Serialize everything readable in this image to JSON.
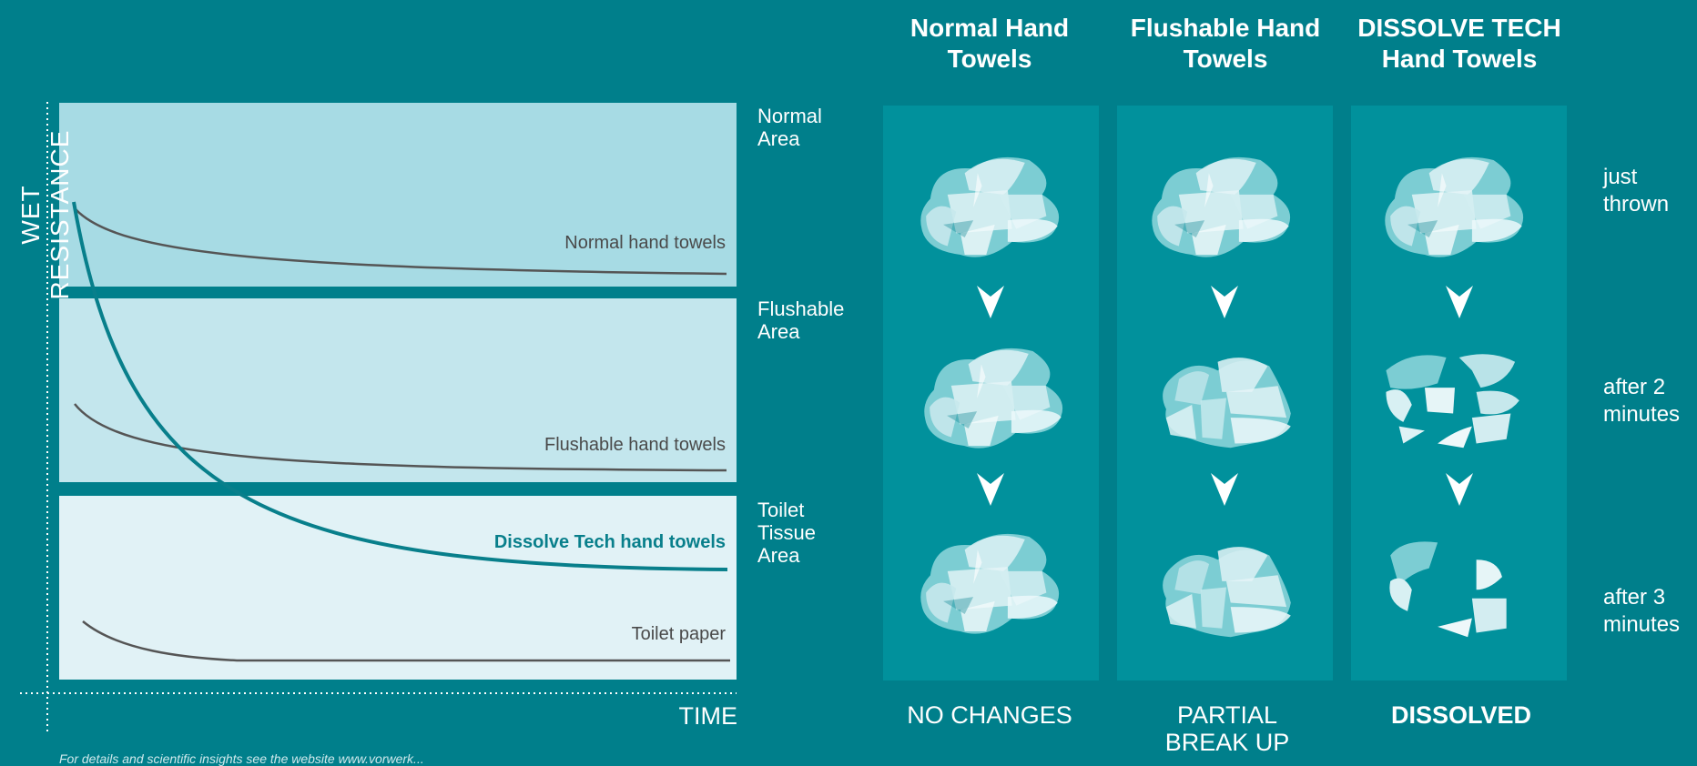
{
  "chart": {
    "y_axis_label": "WET RESISTANCE",
    "x_axis_label": "TIME",
    "curve_labels": {
      "normal": "Normal hand towels",
      "flushable": "Flushable hand towels",
      "dissolve": "Dissolve Tech hand towels",
      "toilet": "Toilet paper"
    },
    "area_labels": {
      "normal": "Normal\nArea",
      "flushable": "Flushable\nArea",
      "toilet": "Toilet\nTissue\nArea"
    },
    "footnote": "For details and scientific insights see the website www.vorwerk..."
  },
  "columns": [
    {
      "title": "Normal Hand\nTowels",
      "result": "NO CHANGES",
      "result_bold": false
    },
    {
      "title": "Flushable Hand\nTowels",
      "result": "PARTIAL\nBREAK UP",
      "result_bold": false
    },
    {
      "title": "DISSOLVE TECH\nHand Towels",
      "result": "DISSOLVED",
      "result_bold": true
    }
  ],
  "stages": [
    {
      "label": "just\nthrown"
    },
    {
      "label": "after 2\nminutes"
    },
    {
      "label": "after 3\nminutes"
    }
  ],
  "colors": {
    "background": "#007f8b",
    "panel": "#01919c",
    "band_normal": "#a7dbe4",
    "band_flushable": "#c3e6ed",
    "band_toilet": "#e1f2f6",
    "curve_grey": "#555555",
    "curve_accent": "#087f8b"
  },
  "icons": [
    "towel-crumpled-icon",
    "towel-partial-icon",
    "towel-dissolved-icon",
    "arrow-down-icon"
  ]
}
